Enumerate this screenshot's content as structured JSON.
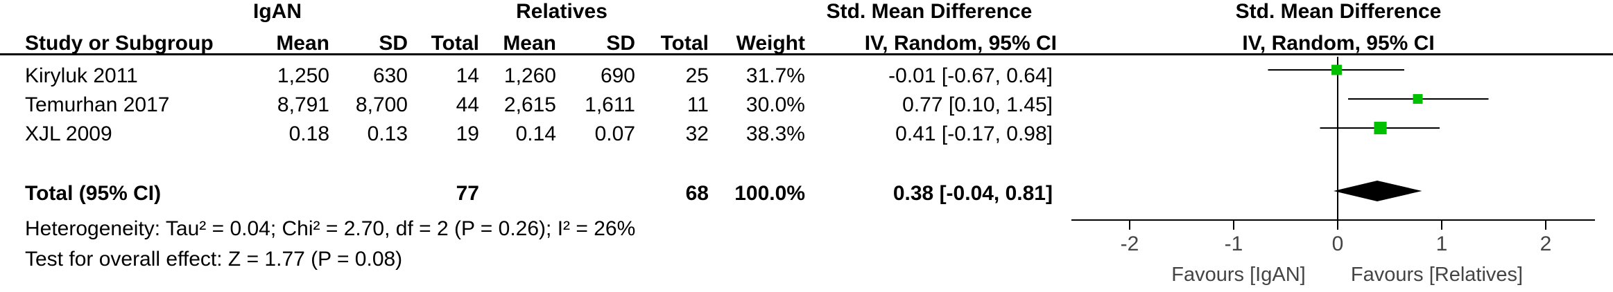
{
  "headers": {
    "group1": "IgAN",
    "group2": "Relatives",
    "smd_table": "Std. Mean Difference",
    "smd_plot": "Std. Mean Difference",
    "study": "Study or Subgroup",
    "mean1": "Mean",
    "sd1": "SD",
    "total1": "Total",
    "mean2": "Mean",
    "sd2": "SD",
    "total2": "Total",
    "weight": "Weight",
    "method_table": "IV, Random, 95% CI",
    "method_plot": "IV, Random, 95% CI"
  },
  "studies": [
    {
      "name": "Kiryluk 2011",
      "mean1": "1,250",
      "sd1": "630",
      "total1": "14",
      "mean2": "1,260",
      "sd2": "690",
      "total2": "25",
      "weight": "31.7%",
      "ci_text": "-0.01 [-0.67, 0.64]"
    },
    {
      "name": "Temurhan 2017",
      "mean1": "8,791",
      "sd1": "8,700",
      "total1": "44",
      "mean2": "2,615",
      "sd2": "1,611",
      "total2": "11",
      "weight": "30.0%",
      "ci_text": "0.77 [0.10, 1.45]"
    },
    {
      "name": "XJL 2009",
      "mean1": "0.18",
      "sd1": "0.13",
      "total1": "19",
      "mean2": "0.14",
      "sd2": "0.07",
      "total2": "32",
      "weight": "38.3%",
      "ci_text": "0.41 [-0.17, 0.98]"
    }
  ],
  "total": {
    "label": "Total (95% CI)",
    "total1": "77",
    "total2": "68",
    "weight": "100.0%",
    "ci_text": "0.38 [-0.04, 0.81]"
  },
  "heterogeneity": "Heterogeneity: Tau² = 0.04; Chi² = 2.70, df = 2 (P = 0.26); I² = 26%",
  "overall_effect": "Test for overall effect: Z = 1.77 (P = 0.08)",
  "favours_left": "Favours [IgAN]",
  "favours_right": "Favours [Relatives]",
  "colors": {
    "marker": "#00c000",
    "diamond": "#000000",
    "line": "#000000"
  },
  "chart_data": {
    "type": "scatter",
    "subtype": "forest-plot",
    "xlim": [
      -2.5,
      2.5
    ],
    "xticks": [
      -2,
      -1,
      0,
      1,
      2
    ],
    "xtick_labels": [
      "-2",
      "-1",
      "0",
      "1",
      "2"
    ],
    "series": [
      {
        "points": [
          {
            "study": "Kiryluk 2011",
            "est": -0.01,
            "lo": -0.67,
            "hi": 0.64,
            "weight": 31.7
          },
          {
            "study": "Temurhan 2017",
            "est": 0.77,
            "lo": 0.1,
            "hi": 1.45,
            "weight": 30.0
          },
          {
            "study": "XJL 2009",
            "est": 0.41,
            "lo": -0.17,
            "hi": 0.98,
            "weight": 38.3
          }
        ]
      }
    ],
    "pooled": {
      "est": 0.38,
      "lo": -0.04,
      "hi": 0.81
    }
  }
}
